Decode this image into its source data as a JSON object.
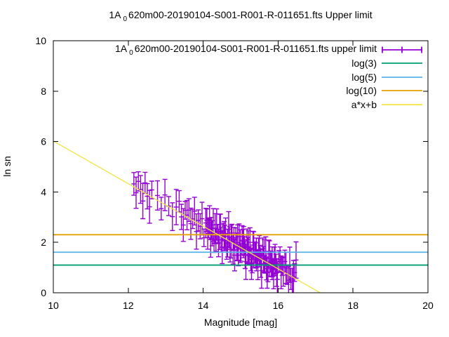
{
  "title": {
    "prefix": "1A",
    "sub": "0",
    "rest": "620m00-20190104-S001-R001-R-011651.fts Upper limit"
  },
  "axes": {
    "xlabel": "Magnitude [mag]",
    "ylabel": "ln sn"
  },
  "legend": {
    "position": "top-right",
    "entries": [
      {
        "label_prefix": "1A",
        "label_sub": "0",
        "label_rest": "620m00-20190104-S001-R001-R-011651.fts upper limit",
        "color": "#9400d3",
        "sample": "errorbar"
      },
      {
        "label": "log(3)",
        "color": "#009e73",
        "sample": "line"
      },
      {
        "label": "log(5)",
        "color": "#56b4e9",
        "sample": "line"
      },
      {
        "label": "log(10)",
        "color": "#e69f00",
        "sample": "line"
      },
      {
        "label": "a*x+b",
        "color": "#f0e442",
        "sample": "line"
      }
    ]
  },
  "chart_data": {
    "type": "scatter",
    "title": "1A_0620m00-20190104-S001-R001-R-011651.fts Upper limit",
    "xlabel": "Magnitude [mag]",
    "ylabel": "ln sn",
    "xlim": [
      10,
      20
    ],
    "ylim": [
      0,
      10
    ],
    "xticks": [
      10,
      12,
      14,
      16,
      18,
      20
    ],
    "yticks": [
      0,
      2,
      4,
      6,
      8,
      10
    ],
    "grid": false,
    "legend_position": "top-right",
    "axis_color": "#000000",
    "background": "#ffffff",
    "series": [
      {
        "name": "1A_0620m00-20190104-S001-R001-R-011651.fts upper limit",
        "type": "errorbars",
        "color": "#9400d3",
        "points": [
          [
            12.15,
            4.32,
            0.45
          ],
          [
            12.21,
            3.97,
            0.62
          ],
          [
            12.27,
            4.42,
            0.38
          ],
          [
            12.33,
            4.1,
            0.55
          ],
          [
            12.39,
            3.64,
            0.7
          ],
          [
            12.45,
            4.36,
            0.42
          ],
          [
            12.51,
            3.83,
            0.5
          ],
          [
            12.57,
            3.41,
            0.65
          ],
          [
            12.63,
            4.08,
            0.35
          ],
          [
            12.78,
            3.86,
            0.58
          ],
          [
            12.88,
            3.34,
            0.45
          ],
          [
            12.98,
            3.88,
            0.62
          ],
          [
            13.08,
            3.44,
            0.38
          ],
          [
            13.18,
            3.02,
            0.55
          ],
          [
            13.28,
            3.4,
            0.7
          ],
          [
            13.36,
            3.63,
            0.42
          ],
          [
            13.42,
            3.01,
            0.5
          ],
          [
            13.47,
            2.69,
            0.65
          ],
          [
            13.52,
            3.27,
            0.35
          ],
          [
            13.57,
            3.08,
            0.58
          ],
          [
            13.62,
            3.28,
            0.45
          ],
          [
            13.67,
            2.74,
            0.62
          ],
          [
            13.72,
            2.93,
            0.38
          ],
          [
            13.77,
            3.24,
            0.55
          ],
          [
            13.82,
            2.43,
            0.7
          ],
          [
            13.87,
            2.87,
            0.42
          ],
          [
            13.92,
            2.64,
            0.5
          ],
          [
            13.97,
            2.94,
            0.65
          ],
          [
            14.02,
            2.18,
            0.35
          ],
          [
            14.07,
            2.77,
            0.58
          ],
          [
            14.1,
            2.88,
            0.45
          ],
          [
            14.12,
            2.35,
            0.62
          ],
          [
            14.15,
            2.56,
            0.38
          ],
          [
            14.17,
            2.9,
            0.55
          ],
          [
            14.2,
            2.11,
            0.7
          ],
          [
            14.22,
            2.57,
            0.42
          ],
          [
            14.24,
            2.36,
            0.5
          ],
          [
            14.27,
            2.69,
            0.65
          ],
          [
            14.29,
            1.95,
            0.35
          ],
          [
            14.32,
            2.56,
            0.58
          ],
          [
            14.34,
            2.1,
            0.45
          ],
          [
            14.36,
            2.71,
            0.62
          ],
          [
            14.39,
            2.33,
            0.38
          ],
          [
            14.41,
            1.98,
            0.55
          ],
          [
            14.44,
            2.42,
            0.7
          ],
          [
            14.46,
            2.7,
            0.42
          ],
          [
            14.48,
            2.11,
            0.5
          ],
          [
            14.51,
            1.81,
            0.65
          ],
          [
            14.53,
            2.41,
            0.35
          ],
          [
            14.56,
            2.25,
            0.58
          ],
          [
            14.58,
            2.23,
            0.45
          ],
          [
            14.6,
            2.35,
            0.62
          ],
          [
            14.63,
            1.71,
            0.38
          ],
          [
            14.65,
            1.97,
            0.55
          ],
          [
            14.68,
            2.52,
            0.7
          ],
          [
            14.7,
            2.2,
            0.42
          ],
          [
            14.72,
            1.72,
            0.5
          ],
          [
            14.75,
            2.03,
            0.65
          ],
          [
            14.77,
            2.37,
            0.35
          ],
          [
            14.8,
            1.72,
            0.58
          ],
          [
            14.82,
            2.14,
            0.45
          ],
          [
            14.84,
            1.49,
            0.62
          ],
          [
            14.87,
            2.19,
            0.38
          ],
          [
            14.89,
            1.82,
            0.55
          ],
          [
            14.92,
            1.99,
            0.7
          ],
          [
            14.94,
            1.49,
            0.42
          ],
          [
            14.96,
            2.23,
            0.5
          ],
          [
            14.99,
            1.85,
            0.65
          ],
          [
            15.01,
            1.6,
            0.35
          ],
          [
            15.04,
            2.08,
            0.58
          ],
          [
            15.06,
            2.06,
            0.45
          ],
          [
            15.08,
            2.01,
            0.62
          ],
          [
            15.1,
            1.86,
            0.38
          ],
          [
            15.12,
            1.51,
            0.55
          ],
          [
            15.14,
            1.23,
            0.7
          ],
          [
            15.17,
            2.11,
            0.42
          ],
          [
            15.19,
            1.69,
            0.5
          ],
          [
            15.21,
            1.81,
            0.65
          ],
          [
            15.23,
            1.48,
            0.35
          ],
          [
            15.25,
            2.0,
            0.58
          ],
          [
            15.27,
            1.32,
            0.45
          ],
          [
            15.29,
            1.15,
            0.62
          ],
          [
            15.31,
            1.17,
            0.38
          ],
          [
            15.33,
            1.89,
            0.55
          ],
          [
            15.35,
            1.72,
            0.7
          ],
          [
            15.38,
            1.6,
            0.42
          ],
          [
            15.4,
            1.48,
            0.5
          ],
          [
            15.42,
            1.52,
            0.65
          ],
          [
            15.44,
            1.36,
            0.35
          ],
          [
            15.46,
            1.1,
            0.58
          ],
          [
            15.48,
            1.71,
            0.45
          ],
          [
            15.5,
            1.65,
            0.62
          ],
          [
            15.52,
            1.5,
            0.38
          ],
          [
            15.54,
            1.16,
            0.55
          ],
          [
            15.56,
            0.88,
            0.7
          ],
          [
            15.59,
            1.75,
            0.42
          ],
          [
            15.61,
            1.33,
            0.5
          ],
          [
            15.63,
            1.46,
            0.65
          ],
          [
            15.65,
            1.13,
            0.35
          ],
          [
            15.67,
            1.64,
            0.58
          ],
          [
            15.69,
            0.96,
            0.45
          ],
          [
            15.71,
            0.8,
            0.62
          ],
          [
            15.73,
            0.82,
            0.38
          ],
          [
            15.75,
            1.54,
            0.55
          ],
          [
            15.77,
            1.36,
            0.7
          ],
          [
            15.8,
            1.24,
            0.42
          ],
          [
            15.82,
            1.13,
            0.5
          ],
          [
            15.84,
            1.17,
            0.65
          ],
          [
            15.86,
            1.0,
            0.35
          ],
          [
            15.88,
            0.74,
            0.58
          ],
          [
            15.9,
            1.36,
            0.45
          ],
          [
            15.92,
            1.3,
            0.62
          ],
          [
            15.94,
            1.15,
            0.38
          ],
          [
            15.96,
            0.8,
            0.55
          ],
          [
            15.98,
            0.53,
            0.7
          ],
          [
            16.02,
            1.25,
            0.42
          ],
          [
            16.05,
            1.32,
            0.5
          ],
          [
            16.08,
            0.81,
            0.65
          ],
          [
            16.11,
            1.04,
            0.35
          ],
          [
            16.14,
            0.84,
            0.58
          ],
          [
            16.18,
            1.24,
            0.45
          ],
          [
            16.21,
            0.99,
            0.62
          ],
          [
            16.24,
            0.71,
            0.38
          ],
          [
            16.28,
            0.5,
            0.55
          ],
          [
            16.31,
            1.11,
            0.7
          ],
          [
            16.34,
            0.55,
            0.42
          ],
          [
            16.38,
            0.47,
            0.5
          ],
          [
            16.41,
            0.63,
            0.65
          ],
          [
            16.44,
            0.8,
            0.35
          ],
          [
            16.48,
            1.3,
            0.72
          ]
        ]
      },
      {
        "name": "log(3)",
        "type": "hline",
        "y": 1.0986,
        "color": "#009e73"
      },
      {
        "name": "log(5)",
        "type": "hline",
        "y": 1.6094,
        "color": "#56b4e9"
      },
      {
        "name": "log(10)",
        "type": "hline",
        "y": 2.3026,
        "color": "#e69f00"
      },
      {
        "name": "a*x+b",
        "type": "linear",
        "a": -0.845,
        "b": 14.47,
        "color": "#f0e442",
        "x_range": [
          10,
          20
        ]
      }
    ]
  }
}
